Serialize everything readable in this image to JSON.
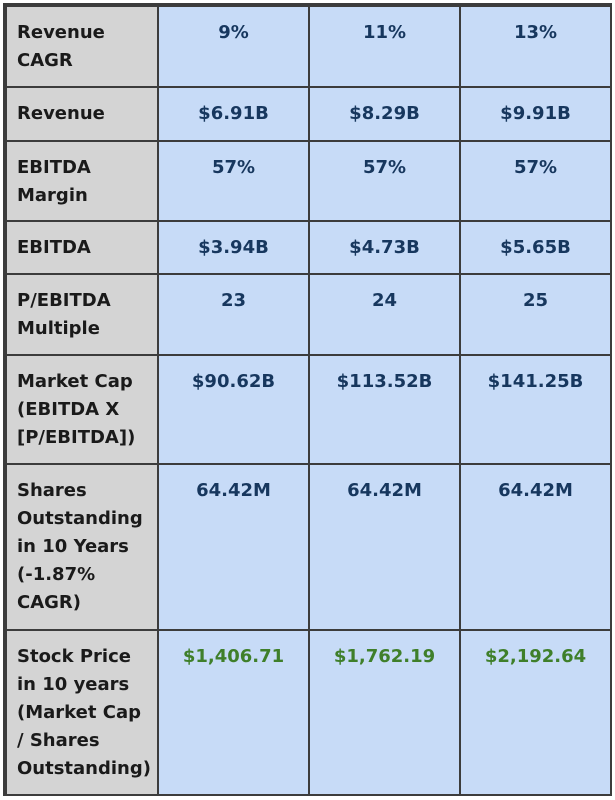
{
  "rows": [
    {
      "label": "Revenue CAGR",
      "values": [
        "9%",
        "11%",
        "13%"
      ]
    },
    {
      "label": "Revenue",
      "values": [
        "$6.91B",
        "$8.29B",
        "$9.91B"
      ]
    },
    {
      "label": "EBITDA Margin",
      "values": [
        "57%",
        "57%",
        "57%"
      ]
    },
    {
      "label": "EBITDA",
      "values": [
        "$3.94B",
        "$4.73B",
        "$5.65B"
      ]
    },
    {
      "label": "P/EBITDA Multiple",
      "values": [
        "23",
        "24",
        "25"
      ]
    },
    {
      "label": "Market Cap (EBITDA X [P/EBITDA])",
      "values": [
        "$90.62B",
        "$113.52B",
        "$141.25B"
      ]
    },
    {
      "label": "Shares Outstanding in 10 Years (-1.87% CAGR)",
      "values": [
        "64.42M",
        "64.42M",
        "64.42M"
      ]
    },
    {
      "label": "Stock Price in 10 years (Market Cap / Shares Outstanding)",
      "values": [
        "$1,406.71",
        "$1,762.19",
        "$2,192.64"
      ]
    }
  ],
  "colors": {
    "label_bg": "#d4d4d4",
    "value_bg": "#c7dbf7",
    "value_text": "#17375e",
    "highlight_text": "#3f7f2a",
    "border": "#3c3c3c"
  }
}
